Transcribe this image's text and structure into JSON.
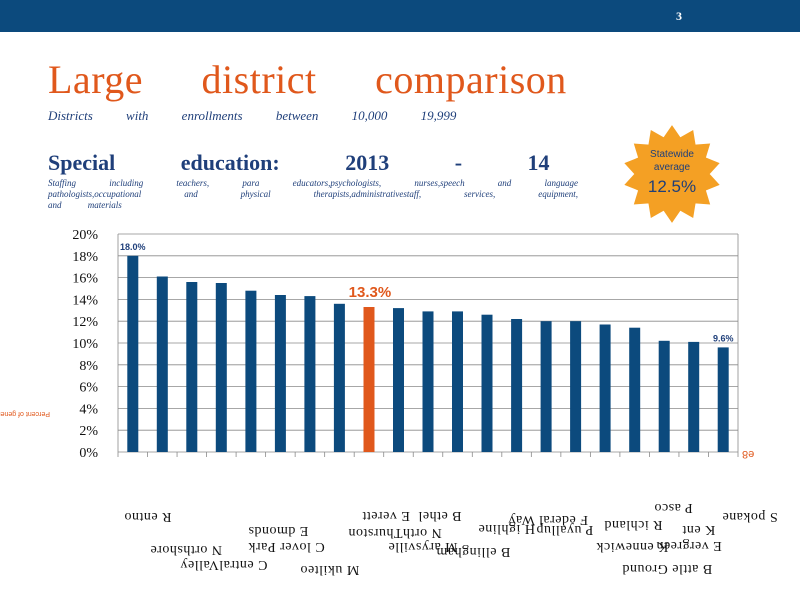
{
  "slide": {
    "number": "3"
  },
  "title": "Large district comparison",
  "subtitle": "Districts with enrollments between 10,000 19,999",
  "section": {
    "title": "Special education:",
    "year_a": "2013",
    "year_b": "- 14"
  },
  "staffing_lines": [
    "Staffing including teachers, para educators,psychologists, nurses,speech and language",
    "pathologists,occupational and physical therapists,administrativestaff, services, equipment,",
    "and materials"
  ],
  "statewide": {
    "label_1": "Statewide",
    "label_2": "average",
    "value": "12.5%"
  },
  "chart_data": {
    "type": "bar",
    "ylim": [
      0,
      20
    ],
    "yticks": [
      "0%",
      "2%",
      "4%",
      "6%",
      "8%",
      "10%",
      "12%",
      "14%",
      "16%",
      "18%",
      "20%"
    ],
    "values": [
      18.0,
      16.1,
      15.6,
      15.5,
      14.8,
      14.4,
      14.3,
      13.6,
      13.3,
      13.2,
      12.9,
      12.9,
      12.6,
      12.2,
      12.0,
      12.0,
      11.7,
      11.4,
      10.2,
      10.1,
      9.6
    ],
    "highlight_index": 8,
    "data_labels": [
      {
        "index": 0,
        "text": "18.0%"
      },
      {
        "index": 8,
        "text": "13.3%"
      },
      {
        "index": 20,
        "text": "9.6%"
      }
    ],
    "grid": true,
    "colors": {
      "bar": "#0c4a7d",
      "highlight": "#e0581c"
    }
  },
  "rotated_axis_note": "Percent of general fund expenditures",
  "rotated_tag": "e8",
  "mirrored_labels": [
    "R entno",
    "N orthshore",
    "C entralValley",
    "C lover Park",
    "E dmonds",
    "M ukilteo",
    "N orthThurston",
    "E verett",
    "M arysville",
    "B ellingham",
    "B ethel",
    "H ighline",
    "F ederal Way",
    "P uyallup",
    "B attle Ground",
    "K ennewick",
    "R ichland",
    "P asco",
    "E vergreen",
    "K ent",
    "S pokane"
  ]
}
